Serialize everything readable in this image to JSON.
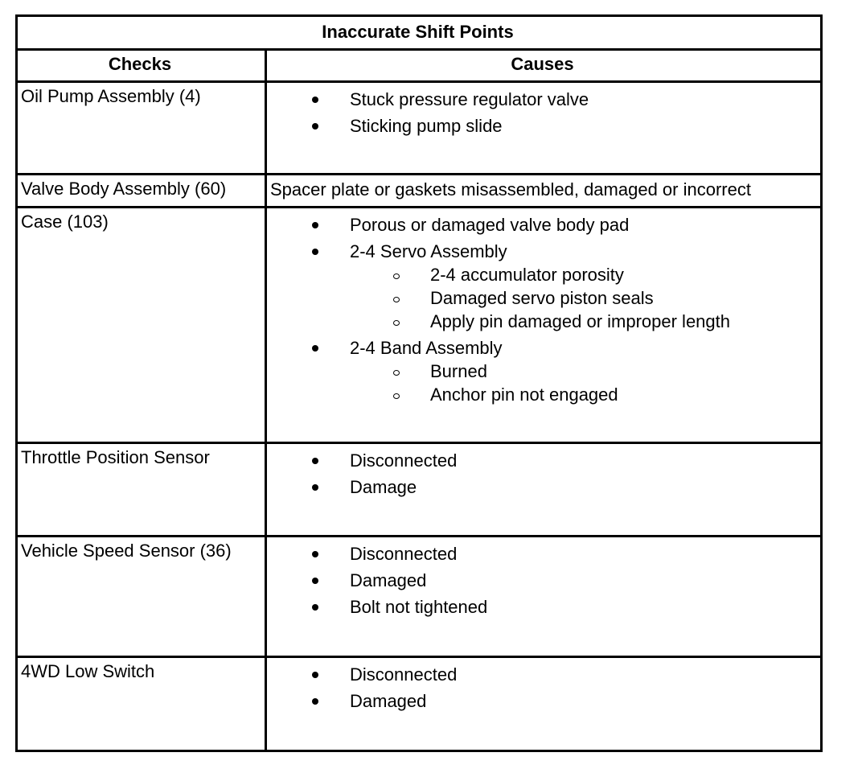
{
  "table": {
    "title": "Inaccurate Shift Points",
    "headers": [
      "Checks",
      "Causes"
    ],
    "rows": [
      {
        "check": "Oil Pump Assembly (4)",
        "causes": [
          {
            "text": "Stuck pressure regulator valve"
          },
          {
            "text": "Sticking pump slide"
          }
        ]
      },
      {
        "check": "Valve Body Assembly (60)",
        "cause": "Spacer plate or gaskets misassembled, damaged or incorrect"
      },
      {
        "check": "Case (103)",
        "causes": [
          {
            "text": "Porous or damaged valve body pad"
          },
          {
            "text": "2-4 Servo Assembly",
            "sub": [
              "2-4 accumulator porosity",
              "Damaged servo piston seals",
              "Apply pin damaged or improper length"
            ]
          },
          {
            "text": "2-4 Band Assembly",
            "sub": [
              "Burned",
              "Anchor pin not engaged"
            ]
          }
        ]
      },
      {
        "check": "Throttle Position Sensor",
        "causes": [
          {
            "text": "Disconnected"
          },
          {
            "text": "Damage"
          }
        ]
      },
      {
        "check": "Vehicle Speed Sensor (36)",
        "causes": [
          {
            "text": "Disconnected"
          },
          {
            "text": "Damaged"
          },
          {
            "text": "Bolt not tightened"
          }
        ]
      },
      {
        "check": "4WD Low Switch",
        "causes": [
          {
            "text": "Disconnected"
          },
          {
            "text": "Damaged"
          }
        ]
      }
    ]
  }
}
